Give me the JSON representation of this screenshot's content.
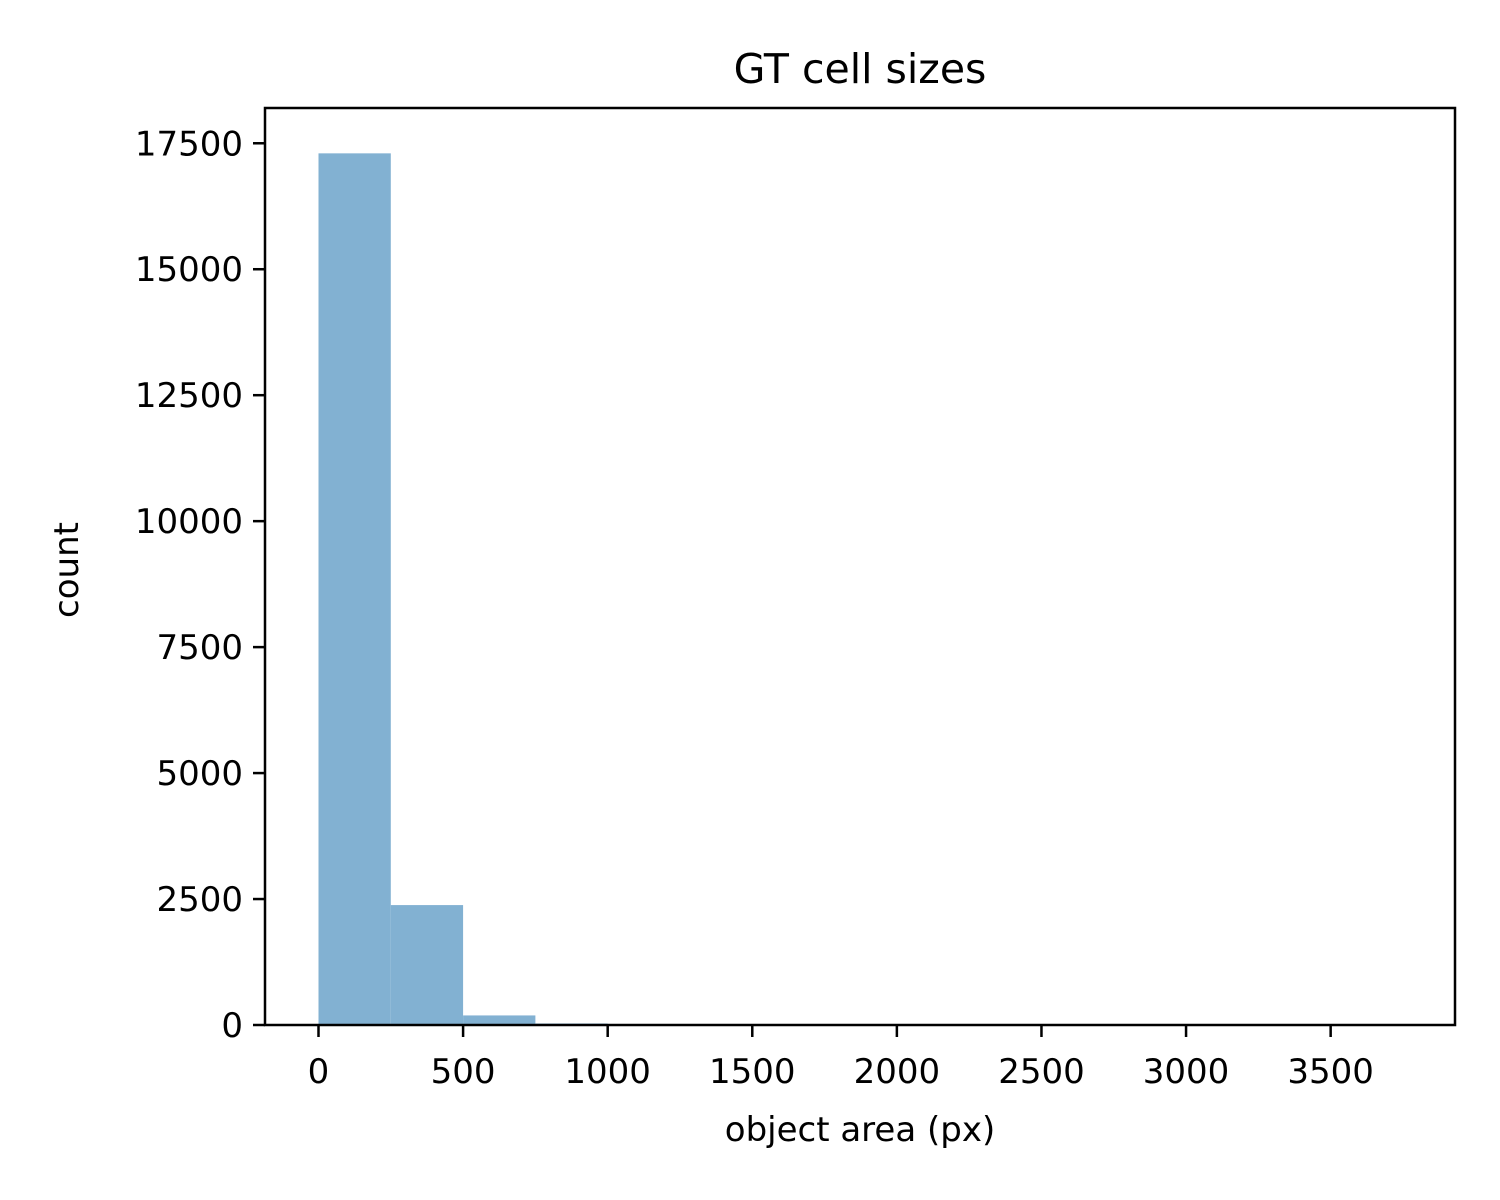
{
  "chart_data": {
    "type": "bar",
    "title": "GT cell sizes",
    "xlabel": "object area (px)",
    "ylabel": "count",
    "xlim": [
      -185,
      3930
    ],
    "ylim": [
      0,
      18200
    ],
    "xticks": [
      0,
      500,
      1000,
      1500,
      2000,
      2500,
      3000,
      3500
    ],
    "xtick_labels": [
      "0",
      "500",
      "1000",
      "1500",
      "2000",
      "2500",
      "3000",
      "3500"
    ],
    "yticks": [
      0,
      2500,
      5000,
      7500,
      10000,
      12500,
      15000,
      17500
    ],
    "ytick_labels": [
      "0",
      "2500",
      "5000",
      "7500",
      "10000",
      "12500",
      "15000",
      "17500"
    ],
    "bins": [
      {
        "x0": 0,
        "x1": 250,
        "count": 17300
      },
      {
        "x0": 250,
        "x1": 500,
        "count": 2380
      },
      {
        "x0": 500,
        "x1": 750,
        "count": 190
      },
      {
        "x0": 750,
        "x1": 1000,
        "count": 30
      },
      {
        "x0": 1000,
        "x1": 1250,
        "count": 8
      },
      {
        "x0": 1250,
        "x1": 1500,
        "count": 3
      },
      {
        "x0": 1500,
        "x1": 1750,
        "count": 2
      },
      {
        "x0": 1750,
        "x1": 2000,
        "count": 1
      },
      {
        "x0": 2000,
        "x1": 2250,
        "count": 1
      },
      {
        "x0": 2250,
        "x1": 2500,
        "count": 0
      },
      {
        "x0": 2500,
        "x1": 2750,
        "count": 0
      },
      {
        "x0": 2750,
        "x1": 3000,
        "count": 0
      },
      {
        "x0": 3000,
        "x1": 3250,
        "count": 0
      },
      {
        "x0": 3250,
        "x1": 3500,
        "count": 0
      },
      {
        "x0": 3500,
        "x1": 3750,
        "count": 1
      }
    ],
    "bar_color": "#82b1d2",
    "grid": false,
    "legend": "none"
  }
}
